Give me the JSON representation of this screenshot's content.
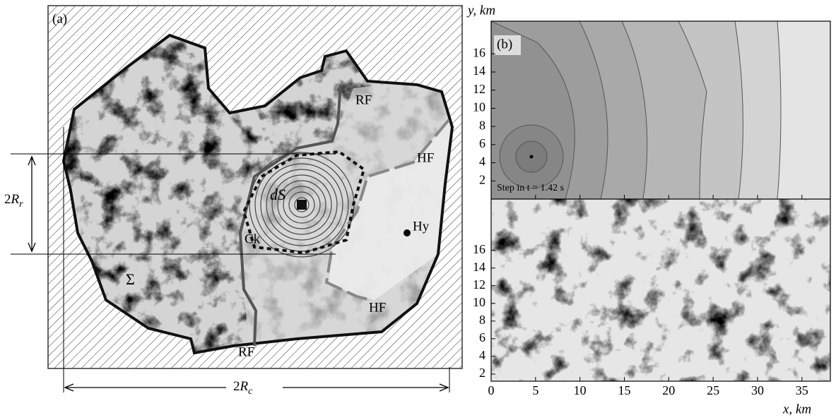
{
  "panel_a": {
    "label": "(a)",
    "labels": {
      "rf_top": "RF",
      "hf_top": "HF",
      "ds": "dS",
      "ck": "Ck",
      "hy": "Hy",
      "sigma": "Σ",
      "hf_bottom": "HF",
      "rf_bottom": "RF"
    },
    "rupture_size": {
      "prefix": "2",
      "symbol": "R",
      "subscript": "r"
    },
    "domain_size": {
      "prefix": "2",
      "symbol": "R",
      "subscript": "c"
    }
  },
  "panel_b": {
    "label": "(b)",
    "y_axis_label": "y, km",
    "x_axis_label": "x, km",
    "annotation": "Step in t = 1.42 s",
    "xlim": [
      0,
      38.2
    ],
    "xticks": [
      0,
      5,
      10,
      15,
      20,
      25,
      30,
      35
    ],
    "top_ylim": [
      0,
      19.6
    ],
    "top_yticks": [
      2,
      4,
      6,
      8,
      10,
      12,
      14,
      16
    ],
    "bottom_ylim": [
      1.2,
      21.8
    ],
    "bottom_yticks": [
      2,
      4,
      6,
      8,
      10,
      12,
      14,
      16
    ]
  }
}
